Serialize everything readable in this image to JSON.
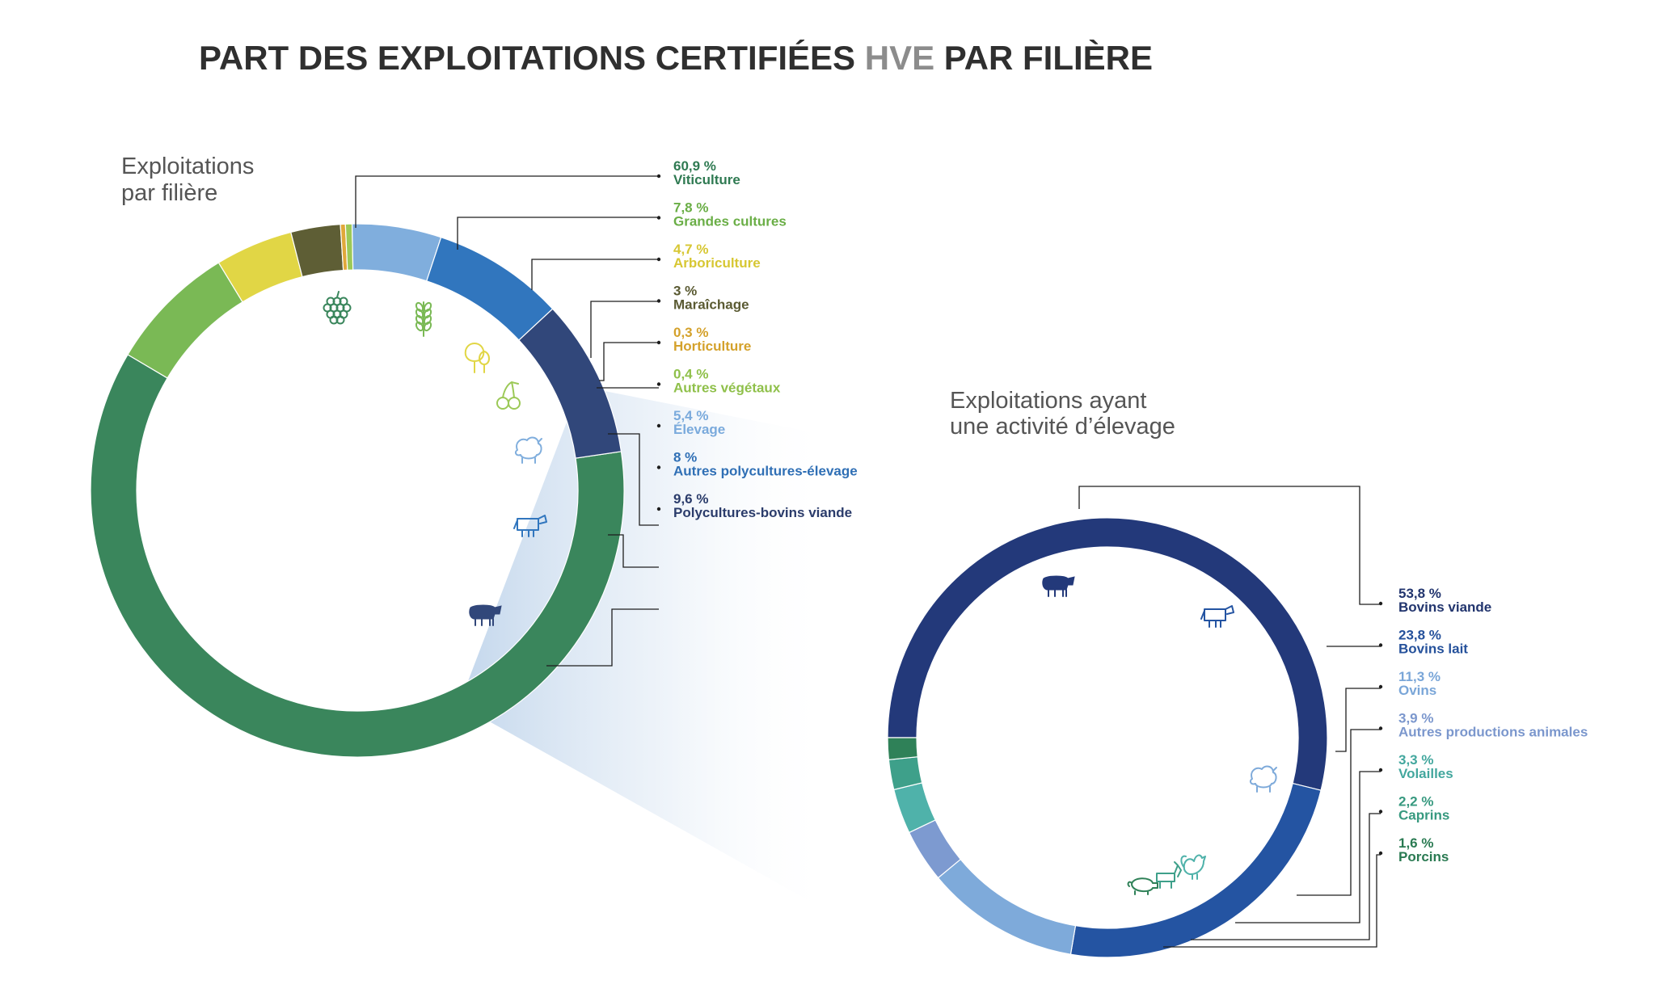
{
  "title": {
    "part1": "PART DES EXPLOITATIONS CERTIFIÉES ",
    "accent": "HVE",
    "part2": " PAR FILIÈRE"
  },
  "colors": {
    "title": "#2f2f2f",
    "title_accent": "#8c8c8c",
    "heading": "#555555"
  },
  "chart_data": [
    {
      "type": "donut",
      "heading_lines": [
        "Exploitations",
        "par filière"
      ],
      "series": [
        {
          "label": "Viticulture",
          "value": 60.9,
          "value_label": "60,9 %",
          "color": "#3a865c",
          "label_color": "#2f7a52",
          "icon": "grape-icon"
        },
        {
          "label": "Grandes cultures",
          "value": 7.8,
          "value_label": "7,8 %",
          "color": "#7ab955",
          "label_color": "#6aae46",
          "icon": "wheat-icon"
        },
        {
          "label": "Arboriculture",
          "value": 4.7,
          "value_label": "4,7 %",
          "color": "#e1d645",
          "label_color": "#d7c733",
          "icon": "tree-icon"
        },
        {
          "label": "Maraîchage",
          "value": 3,
          "value_label": "3 %",
          "color": "#5e5e35",
          "label_color": "#5a5a32",
          "icon": ""
        },
        {
          "label": "Horticulture",
          "value": 0.3,
          "value_label": "0,3 %",
          "color": "#e0a83a",
          "label_color": "#d4a12b",
          "icon": ""
        },
        {
          "label": "Autres végétaux",
          "value": 0.4,
          "value_label": "0,4 %",
          "color": "#9cc957",
          "label_color": "#8fc04a",
          "icon": "cherries-icon"
        },
        {
          "label": "Élevage",
          "value": 5.4,
          "value_label": "5,4 %",
          "color": "#80aedd",
          "label_color": "#7aaadc",
          "icon": "sheep-icon"
        },
        {
          "label": "Autres polycultures-élevage",
          "value": 8,
          "value_label": "8 %",
          "color": "#3176be",
          "label_color": "#2f6fb5",
          "icon": "cow-icon"
        },
        {
          "label": "Polycultures-bovins viande",
          "value": 9.6,
          "value_label": "9,6 %",
          "color": "#31477a",
          "label_color": "#2b3c6b",
          "icon": "bull-icon"
        }
      ]
    },
    {
      "type": "donut",
      "heading_lines": [
        "Exploitations ayant",
        "une activité d’élevage"
      ],
      "series": [
        {
          "label": "Bovins viande",
          "value": 53.8,
          "value_label": "53,8 %",
          "color": "#23397a",
          "label_color": "#22356e",
          "icon": "bull-icon"
        },
        {
          "label": "Bovins lait",
          "value": 23.8,
          "value_label": "23,8 %",
          "color": "#2454a2",
          "label_color": "#25519b",
          "icon": "cow-icon"
        },
        {
          "label": "Ovins",
          "value": 11.3,
          "value_label": "11,3 %",
          "color": "#7eaada",
          "label_color": "#7aa6d8",
          "icon": "sheep-icon"
        },
        {
          "label": "Autres productions animales",
          "value": 3.9,
          "value_label": "3,9 %",
          "color": "#7d9ad0",
          "label_color": "#7b97cd",
          "icon": ""
        },
        {
          "label": "Volailles",
          "value": 3.3,
          "value_label": "3,3 %",
          "color": "#4fb2aa",
          "label_color": "#43a79e",
          "icon": "rooster-icon"
        },
        {
          "label": "Caprins",
          "value": 2.2,
          "value_label": "2,2 %",
          "color": "#3ea08a",
          "label_color": "#37997f",
          "icon": "goat-icon"
        },
        {
          "label": "Porcins",
          "value": 1.6,
          "value_label": "1,6 %",
          "color": "#2f8158",
          "label_color": "#2a7a52",
          "icon": "pig-icon"
        }
      ]
    }
  ]
}
